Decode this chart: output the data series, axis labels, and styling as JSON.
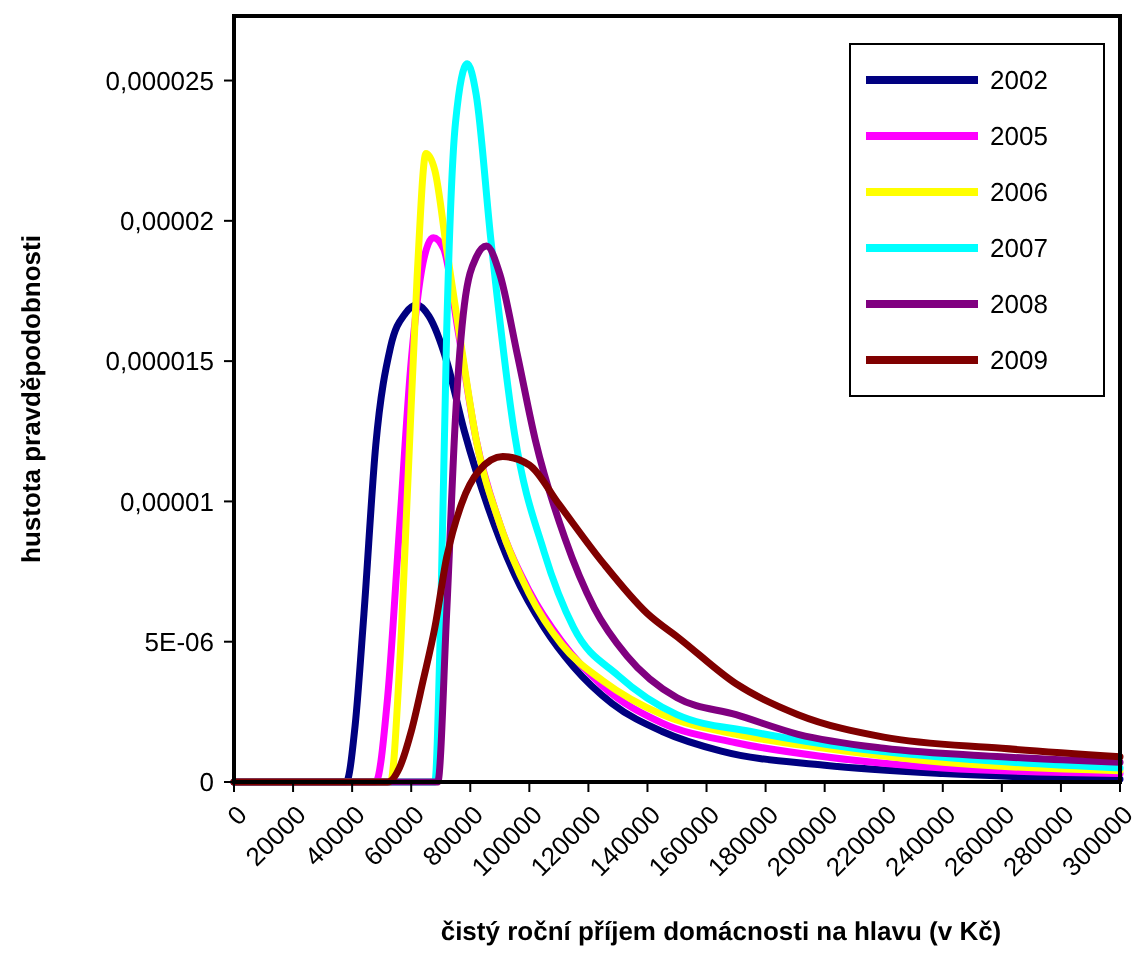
{
  "chart_data": {
    "type": "line",
    "xlabel": "čistý roční příjem domácnosti na hlavu (v Kč)",
    "ylabel": "hustota pravděpodobnosti",
    "xlim": [
      0,
      300000
    ],
    "xticks": [
      0,
      20000,
      40000,
      60000,
      80000,
      100000,
      120000,
      140000,
      160000,
      180000,
      200000,
      220000,
      240000,
      260000,
      280000,
      300000
    ],
    "ylim": [
      0,
      2.73e-05
    ],
    "yticks": [
      0,
      {
        "value": 5e-06,
        "label": "5E-06"
      },
      {
        "value": 1e-05,
        "label": "0,00001"
      },
      {
        "value": 1.5e-05,
        "label": "0,000015"
      },
      {
        "value": 2e-05,
        "label": "0,00002"
      },
      {
        "value": 2.5e-05,
        "label": "0,000025"
      }
    ],
    "grid": false,
    "legend": "top right",
    "marker": "none",
    "line_style": "solid",
    "series": [
      {
        "name": "2002",
        "color": "#000080",
        "x": [
          0,
          38000,
          41000,
          44000,
          48000,
          53000,
          58000,
          62000,
          66000,
          72000,
          78000,
          86000,
          95000,
          105000,
          115000,
          128000,
          145000,
          165000,
          200000,
          240000,
          300000
        ],
        "values": [
          0,
          0,
          2e-06,
          6e-06,
          1.2e-05,
          1.55e-05,
          1.67e-05,
          1.7e-05,
          1.66e-05,
          1.5e-05,
          1.25e-05,
          9.8e-06,
          7.4e-06,
          5.5e-06,
          4.1e-06,
          2.8e-06,
          1.8e-06,
          1.1e-06,
          6e-07,
          3e-07,
          1e-07
        ]
      },
      {
        "name": "2005",
        "color": "#ff00ff",
        "x": [
          0,
          48000,
          52000,
          56000,
          60000,
          64000,
          67500,
          71000,
          76000,
          82000,
          90000,
          100000,
          111000,
          125000,
          145000,
          170000,
          200000,
          240000,
          300000
        ],
        "values": [
          0,
          0,
          3e-06,
          9e-06,
          1.5e-05,
          1.85e-05,
          1.94e-05,
          1.9e-05,
          1.6e-05,
          1.22e-05,
          9.2e-06,
          6.8e-06,
          5e-06,
          3.4e-06,
          2.1e-06,
          1.4e-06,
          9e-07,
          5e-07,
          3e-07
        ]
      },
      {
        "name": "2006",
        "color": "#ffff00",
        "x": [
          0,
          53000,
          56000,
          59000,
          62000,
          65000,
          68000,
          72000,
          77000,
          82000,
          90000,
          100000,
          111000,
          125000,
          145000,
          170000,
          200000,
          240000,
          300000
        ],
        "values": [
          0,
          0,
          4e-06,
          1.1e-05,
          1.8e-05,
          2.24e-05,
          2.18e-05,
          1.9e-05,
          1.55e-05,
          1.22e-05,
          9.2e-06,
          6.7e-06,
          4.9e-06,
          3.6e-06,
          2.4e-06,
          1.7e-06,
          1.2e-06,
          7e-07,
          4e-07
        ]
      },
      {
        "name": "2007",
        "color": "#00ffff",
        "x": [
          0,
          68000,
          70000,
          72000,
          75000,
          79000,
          82000,
          87000,
          95000,
          105000,
          115000,
          130000,
          150000,
          175000,
          210000,
          250000,
          300000
        ],
        "values": [
          0,
          0,
          6e-06,
          1.6e-05,
          2.35e-05,
          2.56e-05,
          2.45e-05,
          1.93e-05,
          1.24e-05,
          8.2e-06,
          5.5e-06,
          3.8e-06,
          2.4e-06,
          1.8e-06,
          1.2e-06,
          8e-07,
          5e-07
        ]
      },
      {
        "name": "2008",
        "color": "#800080",
        "x": [
          0,
          69000,
          72000,
          75000,
          78000,
          82000,
          85500,
          90000,
          96000,
          102000,
          112000,
          122000,
          133000,
          150000,
          170000,
          191000,
          220000,
          260000,
          300000
        ],
        "values": [
          0,
          0,
          6e-06,
          1.3e-05,
          1.7e-05,
          1.87e-05,
          1.91e-05,
          1.81e-05,
          1.52e-05,
          1.22e-05,
          8.7e-06,
          6.2e-06,
          4.5e-06,
          3e-06,
          2.4e-06,
          1.7e-06,
          1.2e-06,
          9e-07,
          7e-07
        ]
      },
      {
        "name": "2009",
        "color": "#800000",
        "x": [
          0,
          52000,
          56000,
          60000,
          64000,
          68000,
          72000,
          77000,
          83000,
          91000,
          100000,
          110000,
          125000,
          140000,
          151000,
          170000,
          191000,
          220000,
          260000,
          300000
        ],
        "values": [
          0,
          0,
          5e-07,
          1.8e-06,
          3.6e-06,
          5.5e-06,
          8e-06,
          9.9e-06,
          1.11e-05,
          1.16e-05,
          1.13e-05,
          9.9e-06,
          7.8e-06,
          6e-06,
          5.1e-06,
          3.5e-06,
          2.4e-06,
          1.6e-06,
          1.2e-06,
          9e-07
        ]
      }
    ]
  }
}
